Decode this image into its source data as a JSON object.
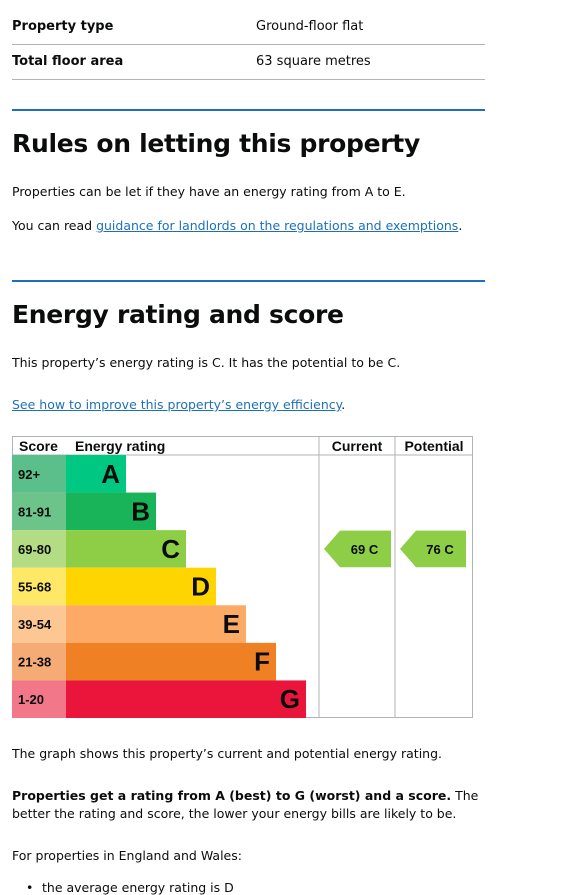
{
  "summary": {
    "rows": [
      {
        "key": "Property type",
        "value": "Ground-floor flat"
      },
      {
        "key": "Total floor area",
        "value": "63 square metres"
      }
    ]
  },
  "letting": {
    "heading": "Rules on letting this property",
    "text": "Properties can be let if they have an energy rating from A to E.",
    "guidance_prefix": "You can read ",
    "guidance_link": "guidance for landlords on the regulations and exemptions",
    "guidance_suffix": "."
  },
  "energy": {
    "heading": "Energy rating and score",
    "text": "This property’s energy rating is C. It has the potential to be C.",
    "improve_link": "See how to improve this property’s energy efficiency",
    "improve_suffix": "."
  },
  "chart_data": {
    "type": "table",
    "headers": {
      "score": "Score",
      "rating": "Energy rating",
      "current": "Current",
      "potential": "Potential"
    },
    "bands": [
      {
        "score": "92+",
        "letter": "A",
        "score_color": "#5bbf8b",
        "bar_color": "#00c781"
      },
      {
        "score": "81-91",
        "letter": "B",
        "score_color": "#6cc48a",
        "bar_color": "#19b459"
      },
      {
        "score": "69-80",
        "letter": "C",
        "score_color": "#b4dc84",
        "bar_color": "#8dce46"
      },
      {
        "score": "55-68",
        "letter": "D",
        "score_color": "#ffe768",
        "bar_color": "#ffd500"
      },
      {
        "score": "39-54",
        "letter": "E",
        "score_color": "#fdc794",
        "bar_color": "#fcaa65"
      },
      {
        "score": "21-38",
        "letter": "F",
        "score_color": "#f5ab76",
        "bar_color": "#ef8023"
      },
      {
        "score": "1-20",
        "letter": "G",
        "score_color": "#f27889",
        "bar_color": "#e9153b"
      }
    ],
    "current": {
      "score": 69,
      "rating": "C",
      "label": "69 C",
      "color": "#8dce46"
    },
    "potential": {
      "score": 76,
      "rating": "C",
      "label": "76 C",
      "color": "#8dce46"
    }
  },
  "after_chart": {
    "graph_text": "The graph shows this property’s current and potential energy rating.",
    "bold": "Properties get a rating from A (best) to G (worst) and a score.",
    "rest": " The better the rating and score, the lower your energy bills are likely to be.",
    "regions": "For properties in England and Wales:",
    "bullets": [
      "the average energy rating is D"
    ]
  }
}
